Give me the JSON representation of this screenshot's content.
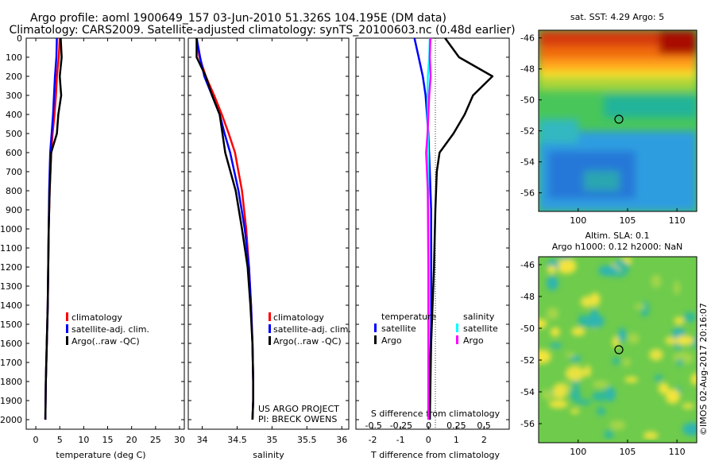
{
  "header": {
    "line1": "Argo profile: aoml 1900649_157 03-Jun-2010 51.326S 104.195E (DM data)",
    "line2": "Climatology: CARS2009. Satellite-adjusted climatology: synTS_20100603.nc (0.48d earlier)"
  },
  "depth_ticks": [
    "0",
    "100",
    "200",
    "300",
    "400",
    "500",
    "600",
    "700",
    "800",
    "900",
    "1000",
    "1100",
    "1200",
    "1300",
    "1400",
    "1500",
    "1600",
    "1700",
    "1800",
    "1900",
    "2000"
  ],
  "panels": {
    "temperature": {
      "xlabel": "temperature (deg C)",
      "xticks": [
        "0",
        "5",
        "10",
        "15",
        "20",
        "25",
        "30"
      ],
      "legend": [
        "climatology",
        "satellite-adj. clim.",
        "Argo(..raw -QC)"
      ]
    },
    "salinity": {
      "xlabel": "salinity",
      "xticks": [
        "34",
        "34.5",
        "35",
        "35.5",
        "36"
      ],
      "legend": [
        "climatology",
        "satellite-adj. clim.",
        "Argo(..raw -QC)"
      ],
      "credit1": "US ARGO PROJECT",
      "credit2": "PI: BRECK OWENS"
    },
    "difference": {
      "xlabel": "T difference from climatology",
      "xticks": [
        "-2",
        "-1",
        "0",
        "1",
        "2"
      ],
      "toplabel": "S difference from climatology",
      "top_ticks": [
        "-0.5",
        "-0.25",
        "0",
        "0.25",
        "0.5"
      ],
      "legend_heads": [
        "temperature",
        "salinity"
      ],
      "legend_left": [
        "satellite",
        "Argo"
      ],
      "legend_right": [
        "satellite",
        "Argo"
      ]
    },
    "sst_map": {
      "title": "sat. SST: 4.29 Argo: 5",
      "yticks": [
        "-46",
        "-48",
        "-50",
        "-52",
        "-54",
        "-56"
      ],
      "xticks": [
        "100",
        "105",
        "110"
      ]
    },
    "sla_map": {
      "title1": "Altim. SLA: 0.1",
      "title2": "Argo h1000: 0.12 h2000: NaN",
      "yticks": [
        "-46",
        "-48",
        "-50",
        "-52",
        "-54",
        "-56"
      ],
      "xticks": [
        "100",
        "105",
        "110"
      ]
    }
  },
  "footer": {
    "stamp": "©IMOS 02-Aug-2017 20:16:07"
  },
  "colors": {
    "climatology": "#ff0000",
    "satellite": "#0000ff",
    "argo": "#000000",
    "salinity_satellite": "#00ffff",
    "salinity_argo": "#ff00ff"
  },
  "chart_data": [
    {
      "type": "line",
      "title": "temperature",
      "xlabel": "temperature (deg C)",
      "ylabel": "",
      "xlim": [
        -2,
        31
      ],
      "ylim": [
        2050,
        0
      ],
      "series": [
        {
          "name": "climatology",
          "color": "#ff0000",
          "x": [
            5.0,
            4.8,
            4.4,
            4.2,
            3.9,
            3.5,
            3.2,
            2.9,
            2.7,
            2.6,
            2.5,
            2.3,
            2.1,
            2.0
          ],
          "y": [
            0,
            100,
            200,
            300,
            400,
            500,
            600,
            800,
            1000,
            1200,
            1400,
            1600,
            1800,
            2000
          ]
        },
        {
          "name": "satellite-adj. clim.",
          "color": "#0000ff",
          "x": [
            4.4,
            4.3,
            4.0,
            3.8,
            3.6,
            3.3,
            3.0,
            2.8,
            2.7,
            2.6,
            2.5,
            2.3,
            2.1,
            2.0
          ],
          "y": [
            0,
            100,
            200,
            300,
            400,
            500,
            600,
            800,
            1000,
            1200,
            1400,
            1600,
            1800,
            2000
          ]
        },
        {
          "name": "Argo(..raw -QC)",
          "color": "#000000",
          "x": [
            5.2,
            5.4,
            5.0,
            5.3,
            4.7,
            4.4,
            3.2,
            2.9,
            2.7,
            2.6,
            2.5,
            2.3,
            2.1,
            2.0
          ],
          "y": [
            0,
            100,
            200,
            300,
            400,
            500,
            600,
            800,
            1000,
            1200,
            1400,
            1600,
            1800,
            2000
          ]
        }
      ]
    },
    {
      "type": "line",
      "title": "salinity",
      "xlabel": "salinity",
      "ylabel": "",
      "xlim": [
        33.8,
        36.1
      ],
      "ylim": [
        2050,
        0
      ],
      "series": [
        {
          "name": "climatology",
          "color": "#ff0000",
          "x": [
            33.92,
            33.96,
            34.05,
            34.17,
            34.28,
            34.38,
            34.47,
            34.57,
            34.63,
            34.67,
            34.7,
            34.72,
            34.73,
            34.73,
            34.72
          ],
          "y": [
            0,
            100,
            200,
            300,
            400,
            500,
            600,
            800,
            1000,
            1200,
            1400,
            1600,
            1800,
            1900,
            2000
          ]
        },
        {
          "name": "satellite-adj. clim.",
          "color": "#0000ff",
          "x": [
            33.92,
            33.97,
            34.03,
            34.14,
            34.25,
            34.32,
            34.4,
            34.52,
            34.61,
            34.67,
            34.7,
            34.72,
            34.73,
            34.73,
            34.72
          ],
          "y": [
            0,
            100,
            200,
            300,
            400,
            500,
            600,
            800,
            1000,
            1200,
            1400,
            1600,
            1800,
            1900,
            2000
          ]
        },
        {
          "name": "Argo(..raw -QC)",
          "color": "#000000",
          "x": [
            33.92,
            33.92,
            34.05,
            34.14,
            34.25,
            34.29,
            34.33,
            34.48,
            34.57,
            34.65,
            34.69,
            34.72,
            34.73,
            34.73,
            34.72
          ],
          "y": [
            0,
            100,
            200,
            300,
            400,
            500,
            600,
            800,
            1000,
            1200,
            1400,
            1600,
            1800,
            1900,
            2000
          ]
        }
      ]
    },
    {
      "type": "line",
      "title": "difference from climatology",
      "xlabel": "T difference from climatology",
      "ylabel": "",
      "xlim": [
        -2.6,
        2.9
      ],
      "ylim": [
        2050,
        0
      ],
      "series": [
        {
          "name": "temperature satellite",
          "color": "#0000ff",
          "x": [
            -0.5,
            -0.35,
            -0.2,
            -0.1,
            -0.05,
            0.0,
            0.05,
            0.1,
            0.1,
            0.1,
            0.05,
            0.05
          ],
          "y": [
            0,
            100,
            200,
            300,
            400,
            500,
            700,
            900,
            1200,
            1500,
            1800,
            2000
          ]
        },
        {
          "name": "temperature Argo",
          "color": "#000000",
          "x": [
            0.6,
            1.1,
            2.3,
            1.6,
            1.3,
            0.9,
            0.4,
            0.3,
            0.25,
            0.2,
            0.1,
            0.05
          ],
          "y": [
            0,
            100,
            200,
            300,
            400,
            500,
            600,
            700,
            900,
            1200,
            1600,
            2000
          ]
        },
        {
          "name": "salinity satellite",
          "color": "#00ffff",
          "x": [
            0.05,
            0.03,
            -0.02,
            -0.03,
            -0.02,
            -0.01,
            0.0,
            0.0,
            0.01,
            0.0,
            0.0
          ],
          "y": [
            0,
            100,
            200,
            300,
            400,
            600,
            800,
            1100,
            1400,
            1700,
            2000
          ]
        },
        {
          "name": "salinity Argo",
          "color": "#ff00ff",
          "x": [
            0.07,
            0.05,
            0.08,
            0.03,
            0.0,
            -0.03,
            -0.08,
            -0.02,
            0.0,
            0.0
          ],
          "y": [
            0,
            100,
            200,
            300,
            400,
            500,
            600,
            800,
            1200,
            2000
          ]
        }
      ]
    },
    {
      "type": "heatmap",
      "title": "sat. SST: 4.29 Argo: 5",
      "xlim": [
        96,
        112
      ],
      "ylim": [
        -57.2,
        -45.5
      ],
      "marker": {
        "lon": 104.195,
        "lat": -51.326
      }
    },
    {
      "type": "heatmap",
      "title": "Altim. SLA: 0.1",
      "xlim": [
        96,
        112
      ],
      "ylim": [
        -57.2,
        -45.5
      ],
      "marker": {
        "lon": 104.195,
        "lat": -51.326
      }
    }
  ]
}
